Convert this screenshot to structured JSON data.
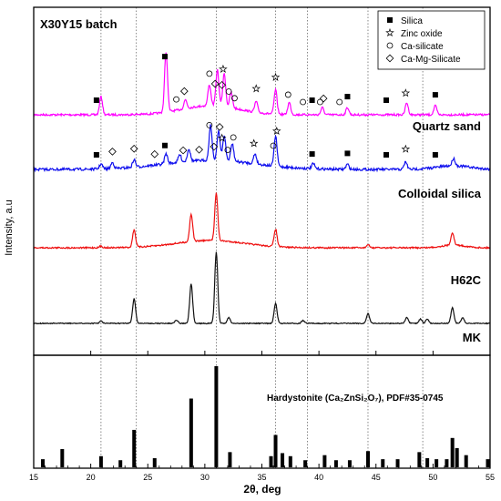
{
  "chart_data": [
    {
      "type": "line",
      "title": "X30Y15 batch",
      "ylabel": "Intensity, a.u",
      "xlim": [
        15,
        55
      ],
      "x_ticks": [
        15,
        20,
        25,
        30,
        35,
        40,
        45,
        50,
        55
      ],
      "reference_lines_x": [
        20.9,
        24,
        31,
        36.2,
        39,
        44.3,
        49.1
      ],
      "legend": {
        "placement": "top-right",
        "entries": [
          {
            "marker": "filled-square",
            "label": "Silica"
          },
          {
            "marker": "star",
            "label": "Zinc oxide"
          },
          {
            "marker": "open-circle",
            "label": "Ca-silicate"
          },
          {
            "marker": "open-diamond",
            "label": "Ca-Mg-Silicate"
          }
        ]
      },
      "series": [
        {
          "name": "Quartz sand",
          "color": "#ff00ff",
          "peaks": [
            [
              20.9,
              0.3
            ],
            [
              26.6,
              1.0
            ],
            [
              28.3,
              0.15
            ],
            [
              30.4,
              0.35
            ],
            [
              31.1,
              0.6
            ],
            [
              31.7,
              0.55
            ],
            [
              32.3,
              0.25
            ],
            [
              34.5,
              0.18
            ],
            [
              36.2,
              0.4
            ],
            [
              37.4,
              0.2
            ],
            [
              40.3,
              0.12
            ],
            [
              42.5,
              0.12
            ],
            [
              47.7,
              0.2
            ],
            [
              50.2,
              0.15
            ]
          ],
          "phase_marks": [
            {
              "x": 20.5,
              "m": "sq"
            },
            {
              "x": 26.5,
              "m": "sq"
            },
            {
              "x": 27.5,
              "m": "ci"
            },
            {
              "x": 28.2,
              "m": "di"
            },
            {
              "x": 30.4,
              "m": "ci"
            },
            {
              "x": 30.9,
              "m": "di"
            },
            {
              "x": 31.5,
              "m": "di"
            },
            {
              "x": 31.6,
              "m": "st"
            },
            {
              "x": 32.1,
              "m": "ci"
            },
            {
              "x": 32.6,
              "m": "ci"
            },
            {
              "x": 34.5,
              "m": "st"
            },
            {
              "x": 36.2,
              "m": "st"
            },
            {
              "x": 37.3,
              "m": "ci"
            },
            {
              "x": 38.6,
              "m": "ci"
            },
            {
              "x": 39.4,
              "m": "sq"
            },
            {
              "x": 40.1,
              "m": "ci"
            },
            {
              "x": 40.4,
              "m": "di"
            },
            {
              "x": 41.8,
              "m": "ci"
            },
            {
              "x": 42.5,
              "m": "sq"
            },
            {
              "x": 45.9,
              "m": "sq"
            },
            {
              "x": 47.6,
              "m": "st"
            },
            {
              "x": 50.2,
              "m": "sq"
            }
          ]
        },
        {
          "name": "Colloidal silica",
          "color": "#1010ee",
          "peaks": [
            [
              20.9,
              0.1
            ],
            [
              21.9,
              0.12
            ],
            [
              23.8,
              0.15
            ],
            [
              26.6,
              0.2
            ],
            [
              27.8,
              0.15
            ],
            [
              28.6,
              0.25
            ],
            [
              30.5,
              0.7
            ],
            [
              31.2,
              0.6
            ],
            [
              31.7,
              0.5
            ],
            [
              32.4,
              0.35
            ],
            [
              34.4,
              0.2
            ],
            [
              36.2,
              0.6
            ],
            [
              39.5,
              0.1
            ],
            [
              42.5,
              0.1
            ],
            [
              47.6,
              0.15
            ],
            [
              51.8,
              0.15
            ]
          ],
          "phase_marks": [
            {
              "x": 20.5,
              "m": "sq"
            },
            {
              "x": 21.9,
              "m": "di"
            },
            {
              "x": 23.8,
              "m": "di"
            },
            {
              "x": 25.6,
              "m": "di"
            },
            {
              "x": 26.5,
              "m": "sq"
            },
            {
              "x": 28.1,
              "m": "di"
            },
            {
              "x": 29.5,
              "m": "di"
            },
            {
              "x": 30.4,
              "m": "ci"
            },
            {
              "x": 30.8,
              "m": "di"
            },
            {
              "x": 31.3,
              "m": "di"
            },
            {
              "x": 31.5,
              "m": "st"
            },
            {
              "x": 32,
              "m": "ci"
            },
            {
              "x": 32.5,
              "m": "ci"
            },
            {
              "x": 34.3,
              "m": "st"
            },
            {
              "x": 36,
              "m": "ci"
            },
            {
              "x": 36.3,
              "m": "st"
            },
            {
              "x": 39.4,
              "m": "sq"
            },
            {
              "x": 42.5,
              "m": "sq"
            },
            {
              "x": 45.9,
              "m": "sq"
            },
            {
              "x": 47.6,
              "m": "st"
            },
            {
              "x": 50.2,
              "m": "sq"
            }
          ]
        },
        {
          "name": "H62C",
          "color": "#ee1111",
          "peaks": [
            [
              20.9,
              0.03
            ],
            [
              23.8,
              0.35
            ],
            [
              28.8,
              0.55
            ],
            [
              31,
              0.95
            ],
            [
              36.2,
              0.35
            ],
            [
              44.3,
              0.06
            ],
            [
              51.7,
              0.25
            ]
          ],
          "phase_marks": []
        },
        {
          "name": "MK",
          "color": "#111111",
          "peaks": [
            [
              20.9,
              0.03
            ],
            [
              23.8,
              0.35
            ],
            [
              27.5,
              0.05
            ],
            [
              28.8,
              0.55
            ],
            [
              31,
              1.0
            ],
            [
              32.1,
              0.08
            ],
            [
              36.2,
              0.28
            ],
            [
              38.6,
              0.04
            ],
            [
              44.3,
              0.14
            ],
            [
              47.7,
              0.08
            ],
            [
              48.9,
              0.06
            ],
            [
              49.5,
              0.06
            ],
            [
              51.7,
              0.22
            ],
            [
              52.6,
              0.08
            ]
          ],
          "phase_marks": []
        }
      ]
    },
    {
      "type": "bar",
      "label": "Hardystonite (Ca₂ZnSi₂O₇), PDF#35-0745",
      "xlabel": "2θ, deg",
      "xlim": [
        15,
        55
      ],
      "reference_lines_x": [
        20.9,
        24,
        31,
        36.2,
        39,
        44.3,
        49.1
      ],
      "sticks": [
        [
          15.8,
          8
        ],
        [
          17.5,
          18
        ],
        [
          20.9,
          11
        ],
        [
          22.6,
          7
        ],
        [
          23.8,
          37
        ],
        [
          25.6,
          9
        ],
        [
          28.8,
          68
        ],
        [
          31,
          100
        ],
        [
          32.2,
          15
        ],
        [
          35.8,
          11
        ],
        [
          36.2,
          32
        ],
        [
          36.8,
          14
        ],
        [
          37.5,
          11
        ],
        [
          38.8,
          7
        ],
        [
          40.5,
          12
        ],
        [
          41.5,
          7
        ],
        [
          42.7,
          7
        ],
        [
          44.3,
          16
        ],
        [
          45.6,
          8
        ],
        [
          46.9,
          8
        ],
        [
          48.8,
          15
        ],
        [
          49.5,
          9
        ],
        [
          50.3,
          8
        ],
        [
          51.2,
          8
        ],
        [
          51.7,
          29
        ],
        [
          52.1,
          19
        ],
        [
          52.9,
          12
        ],
        [
          54.8,
          8
        ]
      ]
    }
  ]
}
